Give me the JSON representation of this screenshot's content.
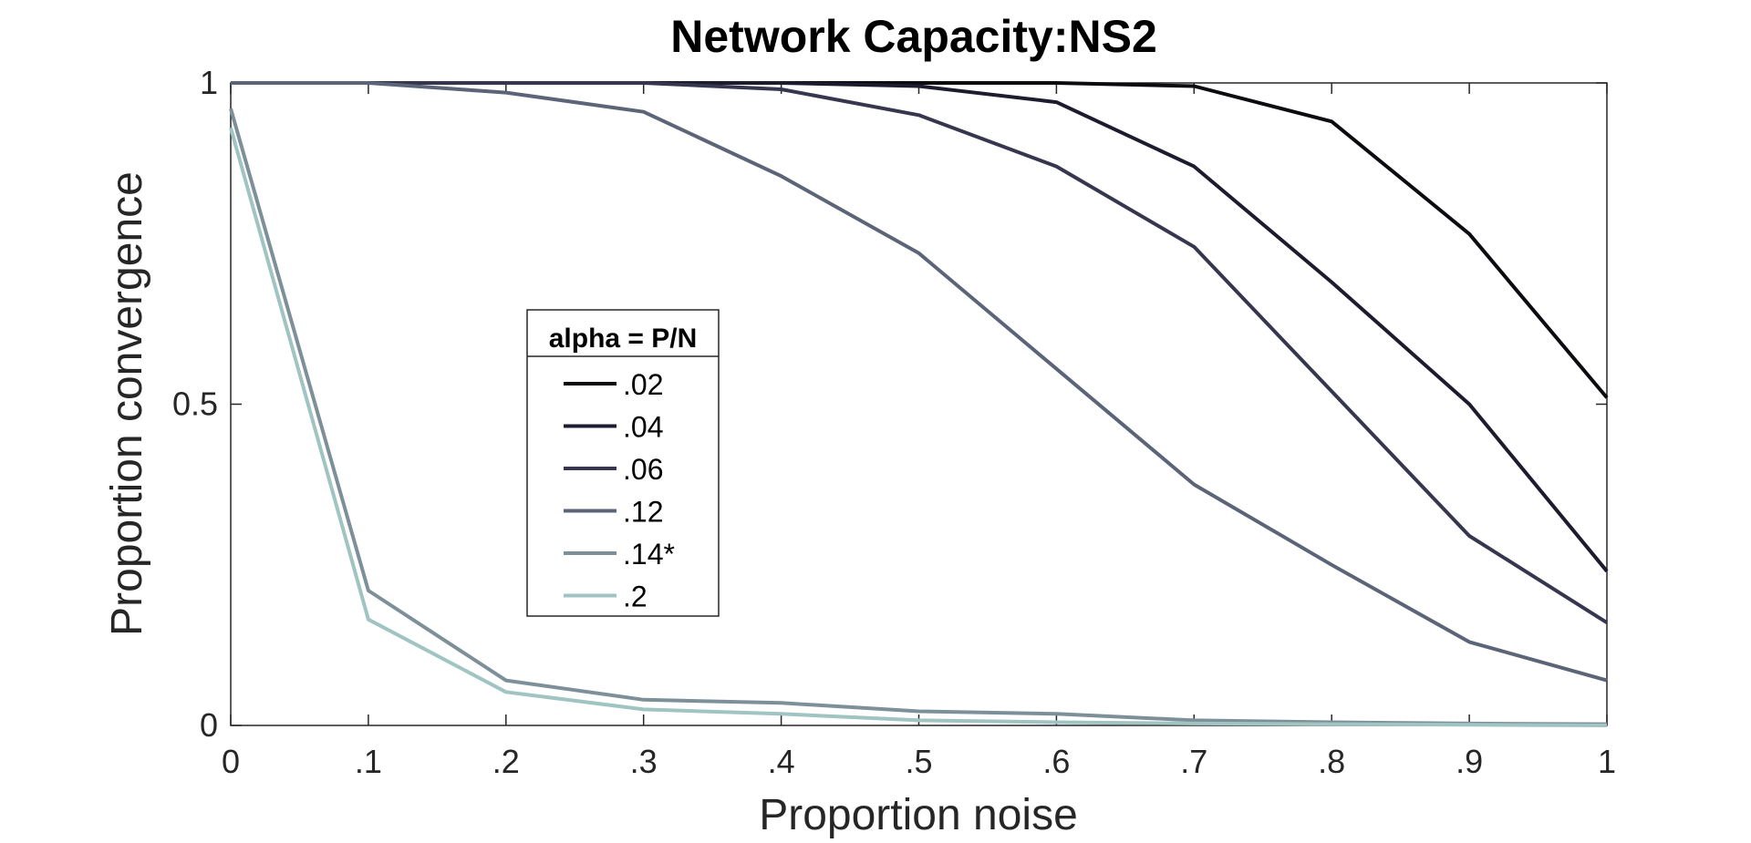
{
  "chart_data": {
    "type": "line",
    "title": "Network Capacity:NS2",
    "xlabel": "Proportion noise",
    "ylabel": "Proportion convergence",
    "x": [
      0,
      0.1,
      0.2,
      0.3,
      0.4,
      0.5,
      0.6,
      0.7,
      0.8,
      0.9,
      1
    ],
    "xtick_labels": [
      "0",
      ".1",
      ".2",
      ".3",
      ".4",
      ".5",
      ".6",
      ".7",
      ".8",
      ".9",
      "1"
    ],
    "yticks": [
      0,
      0.5,
      1
    ],
    "ytick_labels": [
      "0",
      "0.5",
      "1"
    ],
    "xlim": [
      0,
      1
    ],
    "ylim": [
      0,
      1
    ],
    "grid": false,
    "legend": {
      "title": "alpha = P/N",
      "placement": "center-left"
    },
    "series": [
      {
        "name": ".02",
        "color": "#0b0b10",
        "values": [
          1,
          1,
          1,
          1,
          1,
          1,
          1,
          0.995,
          0.94,
          0.765,
          0.51
        ]
      },
      {
        "name": ".04",
        "color": "#1c1c2e",
        "values": [
          1,
          1,
          1,
          1,
          1,
          0.995,
          0.97,
          0.87,
          0.69,
          0.5,
          0.24
        ]
      },
      {
        "name": ".06",
        "color": "#36364f",
        "values": [
          1,
          1,
          1,
          1,
          0.99,
          0.95,
          0.87,
          0.745,
          0.52,
          0.295,
          0.16
        ]
      },
      {
        "name": ".12",
        "color": "#5c6478",
        "values": [
          1,
          1,
          0.985,
          0.955,
          0.855,
          0.735,
          0.555,
          0.375,
          0.25,
          0.13,
          0.07
        ]
      },
      {
        "name": ".14*",
        "color": "#7d909a",
        "values": [
          0.96,
          0.21,
          0.07,
          0.04,
          0.035,
          0.022,
          0.018,
          0.008,
          0.005,
          0.003,
          0.002
        ]
      },
      {
        "name": ".2",
        "color": "#9fc4c2",
        "values": [
          0.93,
          0.165,
          0.052,
          0.025,
          0.018,
          0.008,
          0.005,
          0.003,
          0.002,
          0.001,
          0
        ]
      }
    ]
  }
}
